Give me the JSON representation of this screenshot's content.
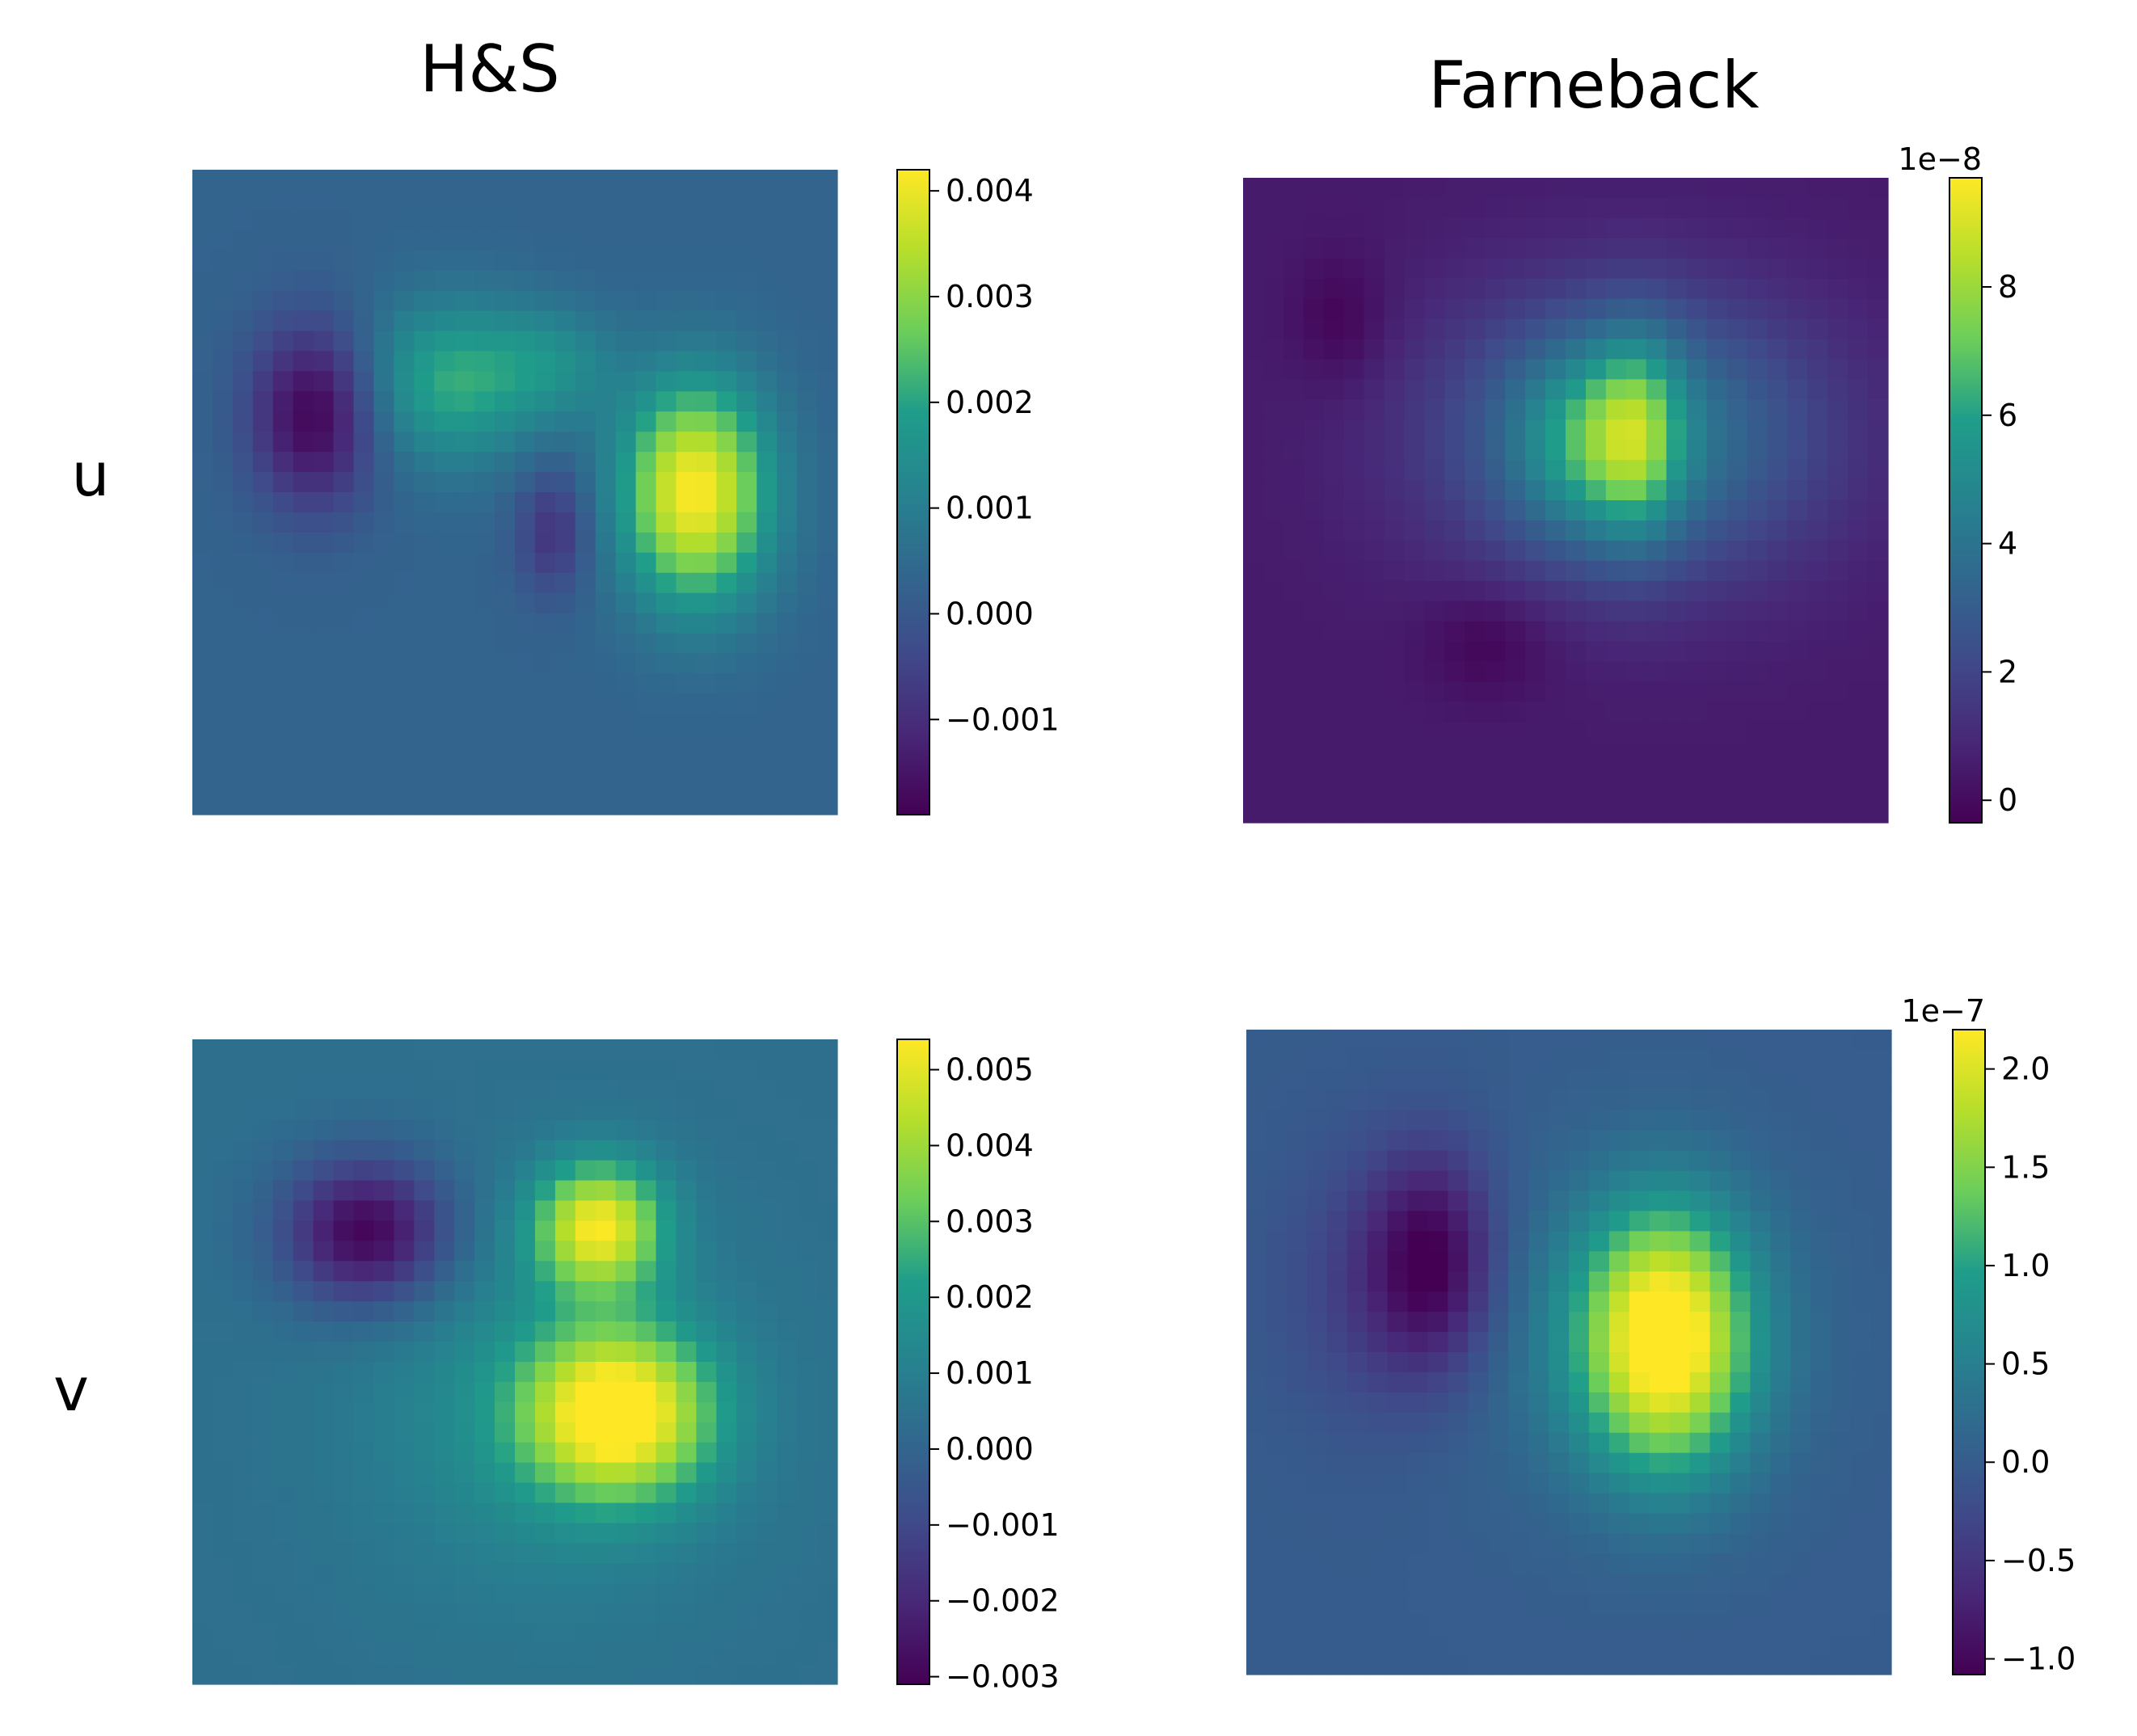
{
  "column_titles": [
    "H&S",
    "Farneback"
  ],
  "row_labels": [
    "u",
    "v"
  ],
  "colormap": "viridis",
  "colormap_stops": [
    "#440154",
    "#482777",
    "#3f4a8a",
    "#31678e",
    "#26838f",
    "#1f9d8a",
    "#6cce5a",
    "#b6de2b",
    "#fee825"
  ],
  "chart_data": [
    {
      "type": "heatmap",
      "title": "",
      "column_title": "H&S",
      "row_label": "u",
      "colorbar": {
        "range": [
          -0.0019,
          0.0042
        ],
        "ticks": [
          -0.001,
          0.0,
          0.001,
          0.002,
          0.003,
          0.004
        ],
        "tick_labels": [
          "−0.001",
          "0.000",
          "0.001",
          "0.002",
          "0.003",
          "0.004"
        ],
        "offset_label": ""
      },
      "background": 0.0003,
      "blobs": [
        {
          "cx": 0.19,
          "cy": 0.38,
          "sx": 0.07,
          "sy": 0.1,
          "amp": -0.0022
        },
        {
          "cx": 0.4,
          "cy": 0.33,
          "sx": 0.1,
          "sy": 0.09,
          "amp": 0.0018
        },
        {
          "cx": 0.56,
          "cy": 0.3,
          "sx": 0.07,
          "sy": 0.06,
          "amp": 0.0009
        },
        {
          "cx": 0.56,
          "cy": 0.56,
          "sx": 0.04,
          "sy": 0.07,
          "amp": -0.0012
        },
        {
          "cx": 0.78,
          "cy": 0.5,
          "sx": 0.08,
          "sy": 0.12,
          "amp": 0.0039
        }
      ]
    },
    {
      "type": "heatmap",
      "title": "",
      "column_title": "Farneback",
      "row_label": "u",
      "colorbar": {
        "range": [
          -0.35,
          9.7
        ],
        "ticks": [
          0,
          2,
          4,
          6,
          8
        ],
        "tick_labels": [
          "0",
          "2",
          "4",
          "6",
          "8"
        ],
        "offset_label": "1e−8"
      },
      "background": 0.5,
      "blobs": [
        {
          "cx": 0.6,
          "cy": 0.4,
          "sx": 0.2,
          "sy": 0.15,
          "amp": 4.0
        },
        {
          "cx": 0.52,
          "cy": 0.41,
          "sx": 0.07,
          "sy": 0.1,
          "amp": 2.2
        },
        {
          "cx": 0.61,
          "cy": 0.4,
          "sx": 0.05,
          "sy": 0.11,
          "amp": 3.5
        },
        {
          "cx": 0.15,
          "cy": 0.22,
          "sx": 0.05,
          "sy": 0.07,
          "amp": -0.8
        },
        {
          "cx": 0.38,
          "cy": 0.72,
          "sx": 0.07,
          "sy": 0.06,
          "amp": -0.8
        }
      ]
    },
    {
      "type": "heatmap",
      "title": "",
      "column_title": "H&S",
      "row_label": "v",
      "colorbar": {
        "range": [
          -0.0031,
          0.0054
        ],
        "ticks": [
          -0.003,
          -0.002,
          -0.001,
          0.0,
          0.001,
          0.002,
          0.003,
          0.004,
          0.005
        ],
        "tick_labels": [
          "−0.003",
          "−0.002",
          "−0.001",
          "0.000",
          "0.001",
          "0.002",
          "0.003",
          "0.004",
          "0.005"
        ],
        "offset_label": ""
      },
      "background": 0.0004,
      "blobs": [
        {
          "cx": 0.27,
          "cy": 0.3,
          "sx": 0.09,
          "sy": 0.08,
          "amp": -0.0035
        },
        {
          "cx": 0.63,
          "cy": 0.29,
          "sx": 0.07,
          "sy": 0.07,
          "amp": 0.0046
        },
        {
          "cx": 0.66,
          "cy": 0.58,
          "sx": 0.1,
          "sy": 0.09,
          "amp": 0.005
        },
        {
          "cx": 0.55,
          "cy": 0.58,
          "sx": 0.2,
          "sy": 0.2,
          "amp": 0.0012
        }
      ]
    },
    {
      "type": "heatmap",
      "title": "",
      "column_title": "Farneback",
      "row_label": "v",
      "colorbar": {
        "range": [
          -1.08,
          2.2
        ],
        "ticks": [
          -1.0,
          -0.5,
          0.0,
          0.5,
          1.0,
          1.5,
          2.0
        ],
        "tick_labels": [
          "−1.0",
          "−0.5",
          "0.0",
          "0.5",
          "1.0",
          "1.5",
          "2.0"
        ],
        "offset_label": "1e−7"
      },
      "background": 0.0,
      "blobs": [
        {
          "cx": 0.29,
          "cy": 0.36,
          "sx": 0.07,
          "sy": 0.12,
          "amp": -1.0
        },
        {
          "cx": 0.19,
          "cy": 0.4,
          "sx": 0.1,
          "sy": 0.15,
          "amp": -0.35
        },
        {
          "cx": 0.65,
          "cy": 0.48,
          "sx": 0.09,
          "sy": 0.14,
          "amp": 2.15
        },
        {
          "cx": 0.6,
          "cy": 0.47,
          "sx": 0.17,
          "sy": 0.17,
          "amp": 0.45
        }
      ]
    }
  ]
}
